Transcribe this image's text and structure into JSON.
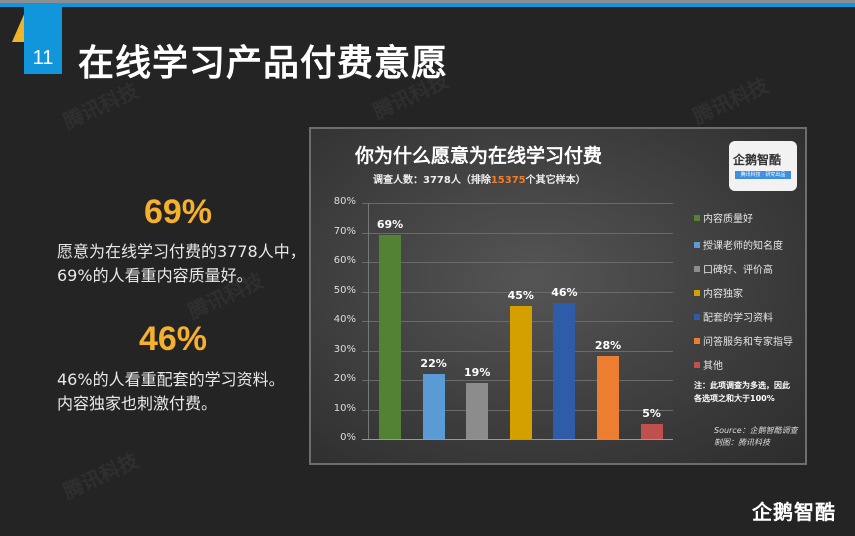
{
  "slide": {
    "number": "11",
    "title": "在线学习产品付费意愿",
    "watermark": "腾讯科技",
    "corner_logo": "企鹅智酷"
  },
  "stats": [
    {
      "value": "69%",
      "text_line1": "愿意为在线学习付费的3778人中，",
      "text_line2": "69%的人看重内容质量好。"
    },
    {
      "value": "46%",
      "text_line1": "46%的人看重配套的学习资料。",
      "text_line2": "内容独家也刺激付费。"
    }
  ],
  "chart": {
    "title": "你为什么愿意为在线学习付费",
    "subtitle_prefix": "调查人数：3778人（排除",
    "subtitle_highlight": "15375",
    "subtitle_suffix": "个其它样本）",
    "logo_text": "企鹅智酷",
    "logo_subtext": "腾讯科技 · 研究出品",
    "note_line1": "注：此项调查为多选，因此",
    "note_line2": "各选项之和大于100%",
    "source_line1": "Source：企鹅智酷调查",
    "source_line2": "制图：腾讯科技",
    "yticks": [
      "80%",
      "70%",
      "60%",
      "50%",
      "40%",
      "30%",
      "20%",
      "10%",
      "0%"
    ]
  },
  "chart_data": {
    "type": "bar",
    "title": "你为什么愿意为在线学习付费",
    "subtitle": "调查人数：3778人（排除15375个其它样本）",
    "categories": [
      "内容质量好",
      "授课老师的知名度",
      "口碑好、评价高",
      "内容独家",
      "配套的学习资料",
      "问答服务和专家指导",
      "其他"
    ],
    "values": [
      69,
      22,
      19,
      45,
      46,
      28,
      5
    ],
    "labels": [
      "69%",
      "22%",
      "19%",
      "45%",
      "46%",
      "28%",
      "5%"
    ],
    "colors": [
      "#548235",
      "#5b9bd5",
      "#8c8c8c",
      "#d4a000",
      "#2f5ca8",
      "#ed7d31",
      "#c0504d"
    ],
    "xlabel": "",
    "ylabel": "",
    "ylim": [
      0,
      80
    ],
    "yticks": [
      0,
      10,
      20,
      30,
      40,
      50,
      60,
      70,
      80
    ],
    "ytick_format": "percent",
    "grid": true,
    "legend_position": "right"
  }
}
